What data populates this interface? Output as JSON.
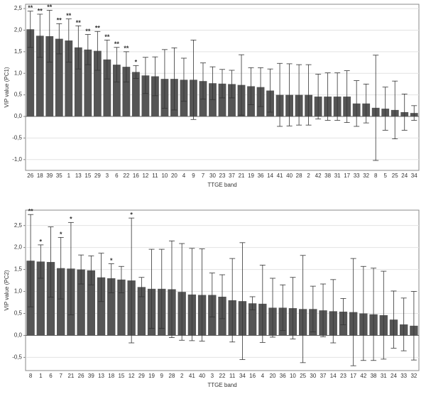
{
  "chart_data": [
    {
      "type": "bar",
      "x_label": "TTGE band",
      "y_label": "VIP value (PC1)",
      "categories": [
        "26",
        "18",
        "39",
        "35",
        "1",
        "13",
        "15",
        "29",
        "3",
        "6",
        "22",
        "16",
        "12",
        "11",
        "10",
        "20",
        "4",
        "9",
        "7",
        "30",
        "23",
        "37",
        "21",
        "19",
        "36",
        "14",
        "41",
        "40",
        "28",
        "2",
        "42",
        "38",
        "31",
        "17",
        "33",
        "32",
        "8",
        "5",
        "25",
        "24",
        "34"
      ],
      "values": [
        2.02,
        1.87,
        1.86,
        1.8,
        1.76,
        1.6,
        1.55,
        1.52,
        1.32,
        1.2,
        1.15,
        1.03,
        0.95,
        0.93,
        0.87,
        0.87,
        0.85,
        0.85,
        0.82,
        0.77,
        0.76,
        0.75,
        0.73,
        0.7,
        0.68,
        0.6,
        0.5,
        0.5,
        0.5,
        0.5,
        0.46,
        0.46,
        0.46,
        0.46,
        0.3,
        0.3,
        0.2,
        0.18,
        0.15,
        0.1,
        0.08
      ],
      "errors": [
        0.42,
        0.5,
        0.6,
        0.35,
        0.5,
        0.5,
        0.35,
        0.45,
        0.45,
        0.4,
        0.35,
        0.15,
        0.42,
        0.45,
        0.68,
        0.72,
        0.5,
        0.92,
        0.42,
        0.38,
        0.33,
        0.32,
        0.7,
        0.43,
        0.45,
        0.5,
        0.73,
        0.72,
        0.7,
        0.7,
        0.52,
        0.55,
        0.55,
        0.6,
        0.53,
        0.45,
        1.22,
        0.5,
        0.67,
        0.42,
        0.17
      ],
      "annotations": [
        "**",
        "**",
        "**",
        "**",
        "**",
        "**",
        "**",
        "**",
        "**",
        "**",
        "**",
        "*",
        null,
        null,
        null,
        null,
        null,
        null,
        null,
        null,
        null,
        null,
        null,
        null,
        null,
        null,
        null,
        null,
        null,
        null,
        null,
        null,
        null,
        null,
        null,
        null,
        null,
        null,
        null,
        null,
        null
      ],
      "color": "#555555",
      "error_color": "#333333",
      "grid": true,
      "ylim": [
        -1.25,
        2.6
      ],
      "yticks": [
        {
          "value": -1,
          "label": "-1,0"
        },
        {
          "value": -0.5,
          "label": "-0,5"
        },
        {
          "value": 0,
          "label": "0,0"
        },
        {
          "value": 0.5,
          "label": "0,5"
        },
        {
          "value": 1,
          "label": "1,0"
        },
        {
          "value": 1.5,
          "label": "1,5"
        },
        {
          "value": 2,
          "label": "2,0"
        },
        {
          "value": 2.5,
          "label": "2,5"
        }
      ]
    },
    {
      "type": "bar",
      "x_label": "TTGE band",
      "y_label": "VIP value (PC2)",
      "categories": [
        "8",
        "1",
        "6",
        "7",
        "21",
        "26",
        "39",
        "13",
        "18",
        "15",
        "12",
        "29",
        "19",
        "9",
        "28",
        "2",
        "41",
        "40",
        "3",
        "22",
        "11",
        "34",
        "16",
        "4",
        "20",
        "36",
        "10",
        "25",
        "30",
        "37",
        "14",
        "23",
        "17",
        "42",
        "38",
        "31",
        "24",
        "33",
        "32"
      ],
      "values": [
        1.7,
        1.68,
        1.67,
        1.53,
        1.52,
        1.5,
        1.48,
        1.32,
        1.3,
        1.27,
        1.25,
        1.1,
        1.06,
        1.06,
        1.05,
        0.99,
        0.93,
        0.92,
        0.92,
        0.88,
        0.8,
        0.78,
        0.73,
        0.72,
        0.63,
        0.63,
        0.62,
        0.6,
        0.6,
        0.57,
        0.55,
        0.54,
        0.53,
        0.5,
        0.48,
        0.46,
        0.36,
        0.25,
        0.22
      ],
      "errors": [
        1.05,
        0.38,
        0.8,
        0.7,
        1.05,
        0.33,
        0.33,
        0.55,
        0.33,
        0.3,
        1.42,
        0.22,
        0.9,
        0.9,
        1.1,
        1.1,
        1.05,
        1.05,
        0.5,
        0.5,
        0.95,
        1.33,
        0.15,
        0.88,
        0.67,
        0.52,
        0.7,
        1.22,
        0.52,
        0.6,
        0.72,
        0.3,
        1.22,
        1.07,
        1.05,
        1.0,
        0.65,
        0.6,
        0.78
      ],
      "annotations": [
        "**",
        "*",
        null,
        "*",
        "*",
        null,
        null,
        null,
        "*",
        null,
        "*",
        null,
        null,
        null,
        null,
        null,
        null,
        null,
        null,
        null,
        null,
        null,
        null,
        null,
        null,
        null,
        null,
        null,
        null,
        null,
        null,
        null,
        null,
        null,
        null,
        null,
        null,
        null,
        null
      ],
      "color": "#555555",
      "error_color": "#333333",
      "grid": true,
      "ylim": [
        -0.8,
        2.85
      ],
      "yticks": [
        {
          "value": -0.5,
          "label": "-0,5"
        },
        {
          "value": 0,
          "label": "0,0"
        },
        {
          "value": 0.5,
          "label": "0,5"
        },
        {
          "value": 1,
          "label": "1,0"
        },
        {
          "value": 1.5,
          "label": "1,5"
        },
        {
          "value": 2,
          "label": "2,0"
        },
        {
          "value": 2.5,
          "label": "2,5"
        }
      ]
    }
  ]
}
